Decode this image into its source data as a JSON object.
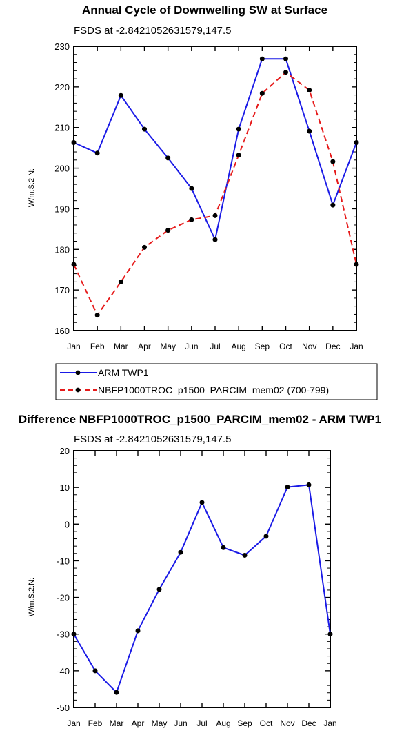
{
  "chart_data": [
    {
      "type": "line",
      "title": "Annual Cycle of Downwelling SW at Surface",
      "subtitle": "FSDS at -2.8421052631579,147.5",
      "ylabel": "W/m:S:2:N:",
      "xlabel": "",
      "categories": [
        "Jan",
        "Feb",
        "Mar",
        "Apr",
        "May",
        "Jun",
        "Jul",
        "Aug",
        "Sep",
        "Oct",
        "Nov",
        "Dec",
        "Jan"
      ],
      "ylim": [
        160,
        230
      ],
      "yticks": [
        160,
        170,
        180,
        190,
        200,
        210,
        220,
        230
      ],
      "legend_position": "bottom",
      "series": [
        {
          "name": "ARM TWP1",
          "color": "#1a1ae6",
          "dash": "solid",
          "values": [
            206.3,
            203.7,
            217.9,
            209.6,
            202.5,
            195.0,
            182.4,
            209.6,
            226.9,
            226.9,
            209.1,
            190.9,
            206.3
          ]
        },
        {
          "name": "NBFP1000TROC_p1500_PARCIM_mem02 (700-799)",
          "color": "#e61a1a",
          "dash": "dashed",
          "values": [
            176.3,
            163.8,
            172.0,
            180.5,
            184.7,
            187.3,
            188.3,
            203.2,
            218.4,
            223.6,
            219.2,
            201.6,
            176.3
          ]
        }
      ]
    },
    {
      "type": "line",
      "title": "Difference NBFP1000TROC_p1500_PARCIM_mem02 - ARM TWP1",
      "subtitle": "FSDS at -2.8421052631579,147.5",
      "ylabel": "W/m:S:2:N:",
      "xlabel": "",
      "categories": [
        "Jan",
        "Feb",
        "Mar",
        "Apr",
        "May",
        "Jun",
        "Jul",
        "Aug",
        "Sep",
        "Oct",
        "Nov",
        "Dec",
        "Jan"
      ],
      "ylim": [
        -50,
        20
      ],
      "yticks": [
        -50,
        -40,
        -30,
        -20,
        -10,
        0,
        10,
        20
      ],
      "series": [
        {
          "color": "#1a1ae6",
          "dash": "solid",
          "values": [
            -30.0,
            -40.0,
            -45.9,
            -29.1,
            -17.8,
            -7.7,
            5.9,
            -6.4,
            -8.5,
            -3.3,
            10.1,
            10.7,
            -30.0
          ]
        }
      ]
    }
  ]
}
